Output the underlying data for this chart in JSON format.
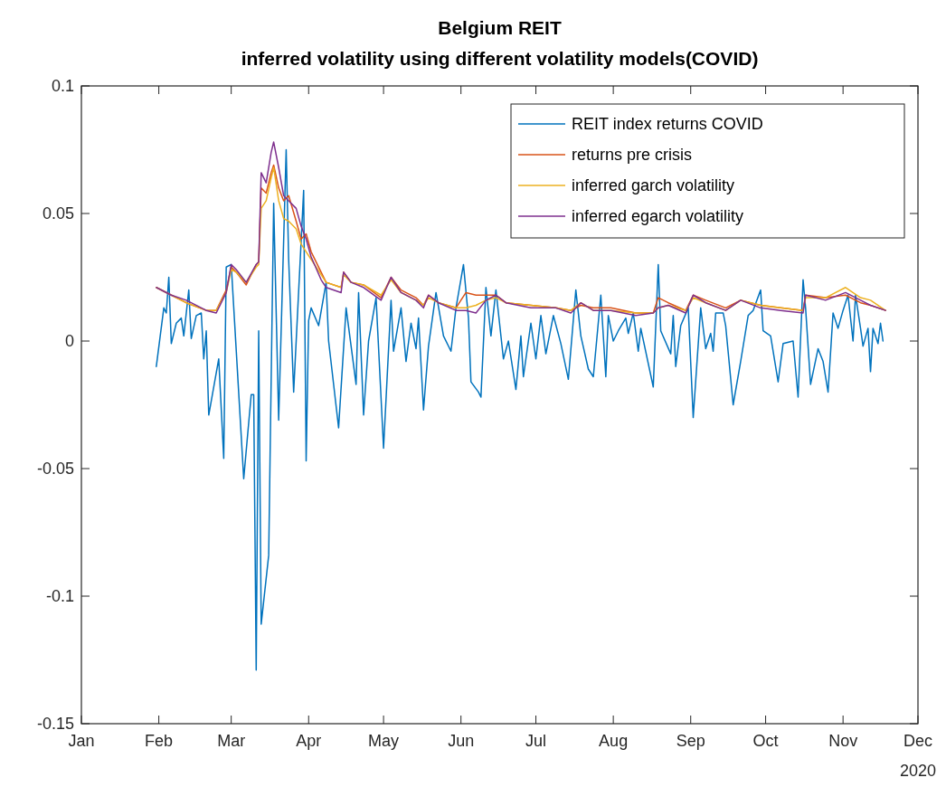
{
  "chart_data": {
    "type": "line",
    "title": "Belgium REIT",
    "subtitle": "inferred volatility using different volatility models(COVID)",
    "annotations": [
      "2020"
    ],
    "xlim": [
      "2020-01-01",
      "2020-12-01"
    ],
    "xticks": [
      {
        "value": "2020-01-01",
        "label": "Jan"
      },
      {
        "value": "2020-02-01",
        "label": "Feb"
      },
      {
        "value": "2020-03-01",
        "label": "Mar"
      },
      {
        "value": "2020-04-01",
        "label": "Apr"
      },
      {
        "value": "2020-05-01",
        "label": "May"
      },
      {
        "value": "2020-06-01",
        "label": "Jun"
      },
      {
        "value": "2020-07-01",
        "label": "Jul"
      },
      {
        "value": "2020-08-01",
        "label": "Aug"
      },
      {
        "value": "2020-09-01",
        "label": "Sep"
      },
      {
        "value": "2020-10-01",
        "label": "Oct"
      },
      {
        "value": "2020-11-01",
        "label": "Nov"
      },
      {
        "value": "2020-12-01",
        "label": "Dec"
      }
    ],
    "ylim": [
      -0.15,
      0.1
    ],
    "yticks": [
      -0.15,
      -0.1,
      -0.05,
      0,
      0.05,
      0.1
    ],
    "grid": false,
    "legend": "top right",
    "marker": "none",
    "line_style": "solid",
    "x": [
      "2020-01-31",
      "2020-02-06",
      "2020-02-12",
      "2020-02-20",
      "2020-02-24",
      "2020-02-28",
      "2020-03-01",
      "2020-03-03",
      "2020-03-07",
      "2020-03-11",
      "2020-03-12",
      "2020-03-13",
      "2020-03-15",
      "2020-03-17",
      "2020-03-18",
      "2020-03-20",
      "2020-03-22",
      "2020-03-24",
      "2020-03-27",
      "2020-03-29",
      "2020-03-31",
      "2020-04-02",
      "2020-04-06",
      "2020-04-08",
      "2020-04-14",
      "2020-04-15",
      "2020-04-18",
      "2020-04-23",
      "2020-04-30",
      "2020-05-04",
      "2020-05-08",
      "2020-05-14",
      "2020-05-17",
      "2020-05-19",
      "2020-05-23",
      "2020-05-30",
      "2020-06-03",
      "2020-06-07",
      "2020-06-11",
      "2020-06-15",
      "2020-06-19",
      "2020-06-29",
      "2020-07-09",
      "2020-07-15",
      "2020-07-19",
      "2020-07-24",
      "2020-07-31",
      "2020-08-10",
      "2020-08-17",
      "2020-08-19",
      "2020-08-23",
      "2020-08-30",
      "2020-09-02",
      "2020-09-07",
      "2020-09-15",
      "2020-09-21",
      "2020-09-29",
      "2020-10-07",
      "2020-10-16",
      "2020-10-17",
      "2020-10-25",
      "2020-11-02",
      "2020-11-08",
      "2020-11-12",
      "2020-11-18"
    ],
    "series": [
      {
        "name": "REIT index returns COVID",
        "color": "#0072bd",
        "x": [
          "2020-01-31",
          "2020-02-03",
          "2020-02-04",
          "2020-02-05",
          "2020-02-06",
          "2020-02-08",
          "2020-02-10",
          "2020-02-11",
          "2020-02-13",
          "2020-02-14",
          "2020-02-16",
          "2020-02-18",
          "2020-02-19",
          "2020-02-20",
          "2020-02-21",
          "2020-02-25",
          "2020-02-27",
          "2020-02-28",
          "2020-03-01",
          "2020-03-06",
          "2020-03-09",
          "2020-03-10",
          "2020-03-11",
          "2020-03-12",
          "2020-03-13",
          "2020-03-16",
          "2020-03-18",
          "2020-03-20",
          "2020-03-23",
          "2020-03-24",
          "2020-03-26",
          "2020-03-30",
          "2020-03-31",
          "2020-04-01",
          "2020-04-02",
          "2020-04-05",
          "2020-04-08",
          "2020-04-09",
          "2020-04-13",
          "2020-04-16",
          "2020-04-20",
          "2020-04-21",
          "2020-04-23",
          "2020-04-25",
          "2020-04-28",
          "2020-05-01",
          "2020-05-04",
          "2020-05-05",
          "2020-05-08",
          "2020-05-10",
          "2020-05-12",
          "2020-05-14",
          "2020-05-15",
          "2020-05-17",
          "2020-05-19",
          "2020-05-22",
          "2020-05-25",
          "2020-05-28",
          "2020-05-30",
          "2020-06-02",
          "2020-06-04",
          "2020-06-05",
          "2020-06-08",
          "2020-06-09",
          "2020-06-11",
          "2020-06-13",
          "2020-06-15",
          "2020-06-18",
          "2020-06-20",
          "2020-06-23",
          "2020-06-25",
          "2020-06-26",
          "2020-06-29",
          "2020-07-01",
          "2020-07-03",
          "2020-07-05",
          "2020-07-08",
          "2020-07-11",
          "2020-07-14",
          "2020-07-17",
          "2020-07-19",
          "2020-07-22",
          "2020-07-24",
          "2020-07-27",
          "2020-07-29",
          "2020-07-30",
          "2020-08-01",
          "2020-08-03",
          "2020-08-06",
          "2020-08-07",
          "2020-08-09",
          "2020-08-11",
          "2020-08-12",
          "2020-08-17",
          "2020-08-19",
          "2020-08-20",
          "2020-08-24",
          "2020-08-25",
          "2020-08-26",
          "2020-08-28",
          "2020-08-31",
          "2020-09-02",
          "2020-09-05",
          "2020-09-07",
          "2020-09-09",
          "2020-09-10",
          "2020-09-11",
          "2020-09-14",
          "2020-09-15",
          "2020-09-18",
          "2020-09-21",
          "2020-09-24",
          "2020-09-26",
          "2020-09-29",
          "2020-09-30",
          "2020-10-03",
          "2020-10-06",
          "2020-10-08",
          "2020-10-12",
          "2020-10-14",
          "2020-10-16",
          "2020-10-17",
          "2020-10-19",
          "2020-10-22",
          "2020-10-24",
          "2020-10-26",
          "2020-10-28",
          "2020-10-30",
          "2020-11-01",
          "2020-11-03",
          "2020-11-05",
          "2020-11-06",
          "2020-11-08",
          "2020-11-09",
          "2020-11-11",
          "2020-11-12",
          "2020-11-13",
          "2020-11-15",
          "2020-11-16",
          "2020-11-17"
        ],
        "values": [
          -0.01,
          0.013,
          0.011,
          0.025,
          -0.001,
          0.007,
          0.009,
          0.002,
          0.02,
          0.001,
          0.01,
          0.011,
          -0.007,
          0.004,
          -0.029,
          -0.007,
          -0.046,
          0.029,
          0.03,
          -0.054,
          -0.021,
          -0.021,
          -0.129,
          0.004,
          -0.111,
          -0.084,
          0.054,
          -0.031,
          0.075,
          0.032,
          -0.02,
          0.059,
          -0.047,
          0.008,
          0.013,
          0.006,
          0.023,
          0.0,
          -0.034,
          0.013,
          -0.017,
          0.019,
          -0.029,
          0.0,
          0.017,
          -0.042,
          0.016,
          -0.004,
          0.013,
          -0.008,
          0.007,
          -0.003,
          0.009,
          -0.027,
          -0.002,
          0.019,
          0.002,
          -0.004,
          0.013,
          0.03,
          0.009,
          -0.016,
          -0.02,
          -0.022,
          0.021,
          0.002,
          0.02,
          -0.007,
          0.0,
          -0.019,
          0.002,
          -0.014,
          0.007,
          -0.007,
          0.01,
          -0.005,
          0.01,
          -0.001,
          -0.015,
          0.02,
          0.002,
          -0.011,
          -0.014,
          0.018,
          -0.014,
          0.01,
          0.0,
          0.004,
          0.009,
          0.003,
          0.011,
          -0.004,
          0.005,
          -0.018,
          0.03,
          0.004,
          -0.005,
          0.01,
          -0.01,
          0.006,
          0.013,
          -0.03,
          0.013,
          -0.003,
          0.003,
          -0.004,
          0.011,
          0.011,
          0.006,
          -0.025,
          -0.008,
          0.01,
          0.012,
          0.02,
          0.004,
          0.002,
          -0.016,
          -0.001,
          0.0,
          -0.022,
          0.024,
          0.013,
          -0.017,
          -0.003,
          -0.008,
          -0.02,
          0.011,
          0.005,
          0.012,
          0.018,
          0.0,
          0.018,
          0.005,
          -0.002,
          0.005,
          -0.012,
          0.005,
          -0.001,
          0.007,
          0.0
        ]
      },
      {
        "name": "returns pre crisis",
        "color": "#d95319",
        "values": [
          0.021,
          0.018,
          0.015,
          0.012,
          0.012,
          0.02,
          0.029,
          0.027,
          0.022,
          0.03,
          0.031,
          0.06,
          0.058,
          0.066,
          0.069,
          0.06,
          0.055,
          0.057,
          0.047,
          0.04,
          0.042,
          0.035,
          0.027,
          0.023,
          0.021,
          0.027,
          0.023,
          0.022,
          0.017,
          0.025,
          0.02,
          0.017,
          0.014,
          0.018,
          0.015,
          0.013,
          0.019,
          0.018,
          0.018,
          0.018,
          0.015,
          0.014,
          0.013,
          0.012,
          0.014,
          0.013,
          0.013,
          0.011,
          0.011,
          0.017,
          0.015,
          0.012,
          0.018,
          0.016,
          0.013,
          0.016,
          0.014,
          0.013,
          0.012,
          0.018,
          0.017,
          0.018,
          0.015,
          0.014,
          0.012
        ]
      },
      {
        "name": "inferred garch volatility",
        "color": "#edb120",
        "values": [
          0.021,
          0.018,
          0.015,
          0.012,
          0.012,
          0.019,
          0.028,
          0.027,
          0.023,
          0.029,
          0.03,
          0.052,
          0.055,
          0.064,
          0.068,
          0.055,
          0.048,
          0.047,
          0.044,
          0.038,
          0.035,
          0.032,
          0.026,
          0.023,
          0.021,
          0.026,
          0.023,
          0.022,
          0.018,
          0.024,
          0.019,
          0.016,
          0.014,
          0.017,
          0.015,
          0.013,
          0.013,
          0.014,
          0.016,
          0.017,
          0.015,
          0.014,
          0.013,
          0.012,
          0.015,
          0.012,
          0.012,
          0.011,
          0.011,
          0.013,
          0.014,
          0.012,
          0.017,
          0.015,
          0.012,
          0.016,
          0.014,
          0.013,
          0.012,
          0.017,
          0.017,
          0.021,
          0.017,
          0.016,
          0.012
        ]
      },
      {
        "name": "inferred egarch volatility",
        "color": "#7e2f8e",
        "values": [
          0.021,
          0.018,
          0.016,
          0.012,
          0.011,
          0.019,
          0.03,
          0.028,
          0.023,
          0.03,
          0.031,
          0.066,
          0.062,
          0.074,
          0.078,
          0.068,
          0.057,
          0.055,
          0.052,
          0.045,
          0.04,
          0.033,
          0.024,
          0.021,
          0.019,
          0.027,
          0.023,
          0.021,
          0.016,
          0.025,
          0.019,
          0.016,
          0.013,
          0.018,
          0.015,
          0.012,
          0.012,
          0.011,
          0.016,
          0.018,
          0.015,
          0.013,
          0.013,
          0.011,
          0.015,
          0.012,
          0.012,
          0.01,
          0.011,
          0.013,
          0.014,
          0.011,
          0.018,
          0.015,
          0.012,
          0.016,
          0.013,
          0.012,
          0.011,
          0.018,
          0.016,
          0.019,
          0.016,
          0.014,
          0.012
        ]
      }
    ]
  }
}
